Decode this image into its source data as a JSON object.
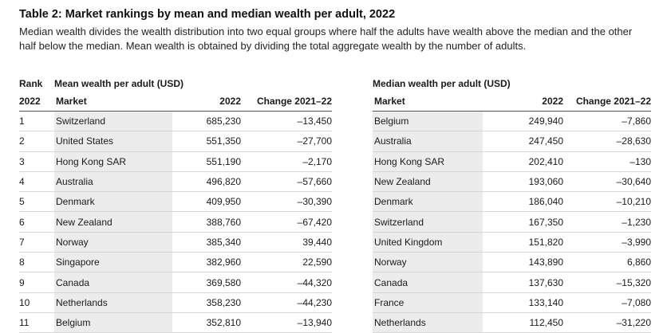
{
  "title": "Table 2: Market rankings by mean and median wealth per adult, 2022",
  "subtitle": "Median wealth divides the wealth distribution into two equal groups where half the adults have wealth above the median and the other half below the median. Mean wealth is obtained by dividing the total aggregate wealth by the number of adults.",
  "mean_table": {
    "rank_header": "Rank",
    "group_header": "Mean wealth per adult (USD)",
    "columns": [
      "2022",
      "Market",
      "2022",
      "Change 2021–22"
    ],
    "rows": [
      {
        "rank": "1",
        "market": "Switzerland",
        "value": "685,230",
        "change": "–13,450"
      },
      {
        "rank": "2",
        "market": "United States",
        "value": "551,350",
        "change": "–27,700"
      },
      {
        "rank": "3",
        "market": "Hong Kong SAR",
        "value": "551,190",
        "change": "–2,170"
      },
      {
        "rank": "4",
        "market": "Australia",
        "value": "496,820",
        "change": "–57,660"
      },
      {
        "rank": "5",
        "market": "Denmark",
        "value": "409,950",
        "change": "–30,390"
      },
      {
        "rank": "6",
        "market": "New Zealand",
        "value": "388,760",
        "change": "–67,420"
      },
      {
        "rank": "7",
        "market": "Norway",
        "value": "385,340",
        "change": "39,440"
      },
      {
        "rank": "8",
        "market": "Singapore",
        "value": "382,960",
        "change": "22,590"
      },
      {
        "rank": "9",
        "market": "Canada",
        "value": "369,580",
        "change": "–44,320"
      },
      {
        "rank": "10",
        "market": "Netherlands",
        "value": "358,230",
        "change": "–44,230"
      },
      {
        "rank": "11",
        "market": "Belgium",
        "value": "352,810",
        "change": "–13,940"
      }
    ]
  },
  "median_table": {
    "group_header": "Median wealth per adult (USD)",
    "columns": [
      "Market",
      "2022",
      "Change 2021–22"
    ],
    "rows": [
      {
        "market": "Belgium",
        "value": "249,940",
        "change": "–7,860"
      },
      {
        "market": "Australia",
        "value": "247,450",
        "change": "–28,630"
      },
      {
        "market": "Hong Kong SAR",
        "value": "202,410",
        "change": "–130"
      },
      {
        "market": "New Zealand",
        "value": "193,060",
        "change": "–30,640"
      },
      {
        "market": "Denmark",
        "value": "186,040",
        "change": "–10,210"
      },
      {
        "market": "Switzerland",
        "value": "167,350",
        "change": "–1,230"
      },
      {
        "market": "United Kingdom",
        "value": "151,820",
        "change": "–3,990"
      },
      {
        "market": "Norway",
        "value": "143,890",
        "change": "6,860"
      },
      {
        "market": "Canada",
        "value": "137,630",
        "change": "–15,320"
      },
      {
        "market": "France",
        "value": "133,140",
        "change": "–7,080"
      },
      {
        "market": "Netherlands",
        "value": "112,450",
        "change": "–31,220"
      }
    ]
  }
}
